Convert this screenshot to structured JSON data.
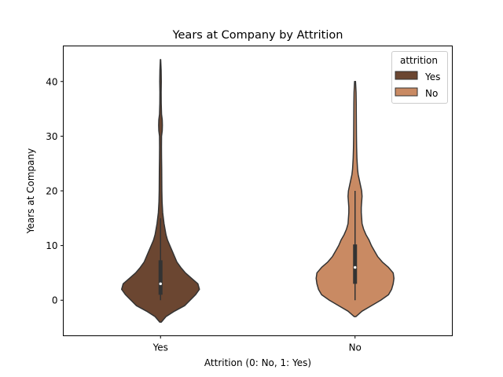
{
  "chart_data": {
    "type": "violin",
    "title": "Years at Company by Attrition",
    "xlabel": "Attrition (0: No, 1: Yes)",
    "ylabel": "Years at Company",
    "categories": [
      "Yes",
      "No"
    ],
    "ylim": [
      -6.5,
      46.5
    ],
    "yticks": [
      0,
      10,
      20,
      30,
      40
    ],
    "grid": false,
    "legend": {
      "title": "attrition",
      "position": "top-right",
      "entries": [
        {
          "label": "Yes",
          "color": "#6b4631"
        },
        {
          "label": "No",
          "color": "#c98a63"
        }
      ]
    },
    "series": [
      {
        "category": "Yes",
        "color": "#6b4631",
        "min": 0,
        "q1": 1,
        "median": 3,
        "q3": 7.3,
        "max": 15,
        "kde_min": -4,
        "kde_max": 44,
        "density": [
          [
            -4,
            0.01
          ],
          [
            -3,
            0.07
          ],
          [
            -2,
            0.18
          ],
          [
            -1,
            0.31
          ],
          [
            0,
            0.38
          ],
          [
            1,
            0.45
          ],
          [
            2,
            0.5
          ],
          [
            3,
            0.48
          ],
          [
            4,
            0.4
          ],
          [
            5,
            0.32
          ],
          [
            6,
            0.26
          ],
          [
            7,
            0.21
          ],
          [
            8,
            0.18
          ],
          [
            9,
            0.15
          ],
          [
            10,
            0.12
          ],
          [
            11,
            0.09
          ],
          [
            12,
            0.07
          ],
          [
            14,
            0.045
          ],
          [
            16,
            0.028
          ],
          [
            18,
            0.02
          ],
          [
            20,
            0.017
          ],
          [
            22,
            0.016
          ],
          [
            24,
            0.015
          ],
          [
            26,
            0.013
          ],
          [
            28,
            0.012
          ],
          [
            30,
            0.013
          ],
          [
            31,
            0.022
          ],
          [
            32,
            0.024
          ],
          [
            33,
            0.022
          ],
          [
            34,
            0.013
          ],
          [
            36,
            0.009
          ],
          [
            38,
            0.008
          ],
          [
            40,
            0.01
          ],
          [
            42,
            0.008
          ],
          [
            44,
            0.002
          ]
        ]
      },
      {
        "category": "No",
        "color": "#c98a63",
        "min": 0,
        "q1": 3,
        "median": 6,
        "q3": 10.2,
        "max": 20,
        "kde_min": -3,
        "kde_max": 40,
        "density": [
          [
            -3,
            0.01
          ],
          [
            -2,
            0.09
          ],
          [
            -1,
            0.21
          ],
          [
            0,
            0.33
          ],
          [
            1,
            0.43
          ],
          [
            2,
            0.47
          ],
          [
            3,
            0.49
          ],
          [
            4,
            0.5
          ],
          [
            5,
            0.49
          ],
          [
            6,
            0.43
          ],
          [
            7,
            0.35
          ],
          [
            8,
            0.29
          ],
          [
            9,
            0.25
          ],
          [
            10,
            0.21
          ],
          [
            11,
            0.18
          ],
          [
            12,
            0.14
          ],
          [
            13,
            0.11
          ],
          [
            14,
            0.09
          ],
          [
            15,
            0.085
          ],
          [
            16,
            0.08
          ],
          [
            17,
            0.08
          ],
          [
            18,
            0.085
          ],
          [
            19,
            0.09
          ],
          [
            20,
            0.085
          ],
          [
            21,
            0.07
          ],
          [
            22,
            0.055
          ],
          [
            23,
            0.04
          ],
          [
            24,
            0.032
          ],
          [
            26,
            0.024
          ],
          [
            28,
            0.02
          ],
          [
            30,
            0.018
          ],
          [
            32,
            0.017
          ],
          [
            34,
            0.016
          ],
          [
            36,
            0.015
          ],
          [
            38,
            0.013
          ],
          [
            40,
            0.006
          ]
        ]
      }
    ]
  }
}
